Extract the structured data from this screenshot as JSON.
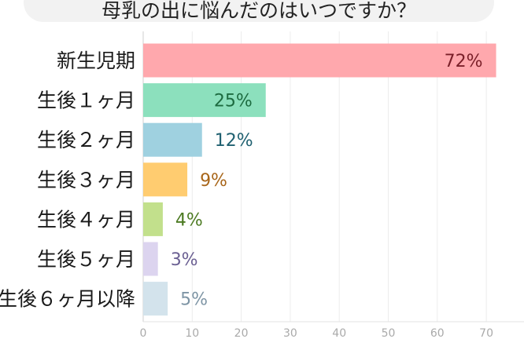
{
  "chart_data": {
    "type": "bar",
    "orientation": "horizontal",
    "title": "母乳の出に悩んだのはいつですか？",
    "categories": [
      "新生児期",
      "生後１ヶ月",
      "生後２ヶ月",
      "生後３ヶ月",
      "生後４ヶ月",
      "生後５ヶ月",
      "生後６ヶ月以降"
    ],
    "values": [
      72,
      25,
      12,
      9,
      4,
      3,
      5
    ],
    "value_labels": [
      "72%",
      "25%",
      "12%",
      "9%",
      "4%",
      "3%",
      "5%"
    ],
    "bar_colors": [
      "#ffa8ad",
      "#8ce0bd",
      "#9fd1e0",
      "#ffcc70",
      "#c2e08c",
      "#dcd4ef",
      "#d3e3ec"
    ],
    "label_colors": [
      "#7a1f28",
      "#1d6b40",
      "#1f6070",
      "#a8661a",
      "#4c7a22",
      "#6a5f92",
      "#7e95a5"
    ],
    "x_ticks": [
      0,
      10,
      20,
      30,
      40,
      50,
      60,
      70
    ],
    "xlim": [
      0,
      77
    ],
    "grid": true,
    "xlabel": "",
    "ylabel": ""
  }
}
